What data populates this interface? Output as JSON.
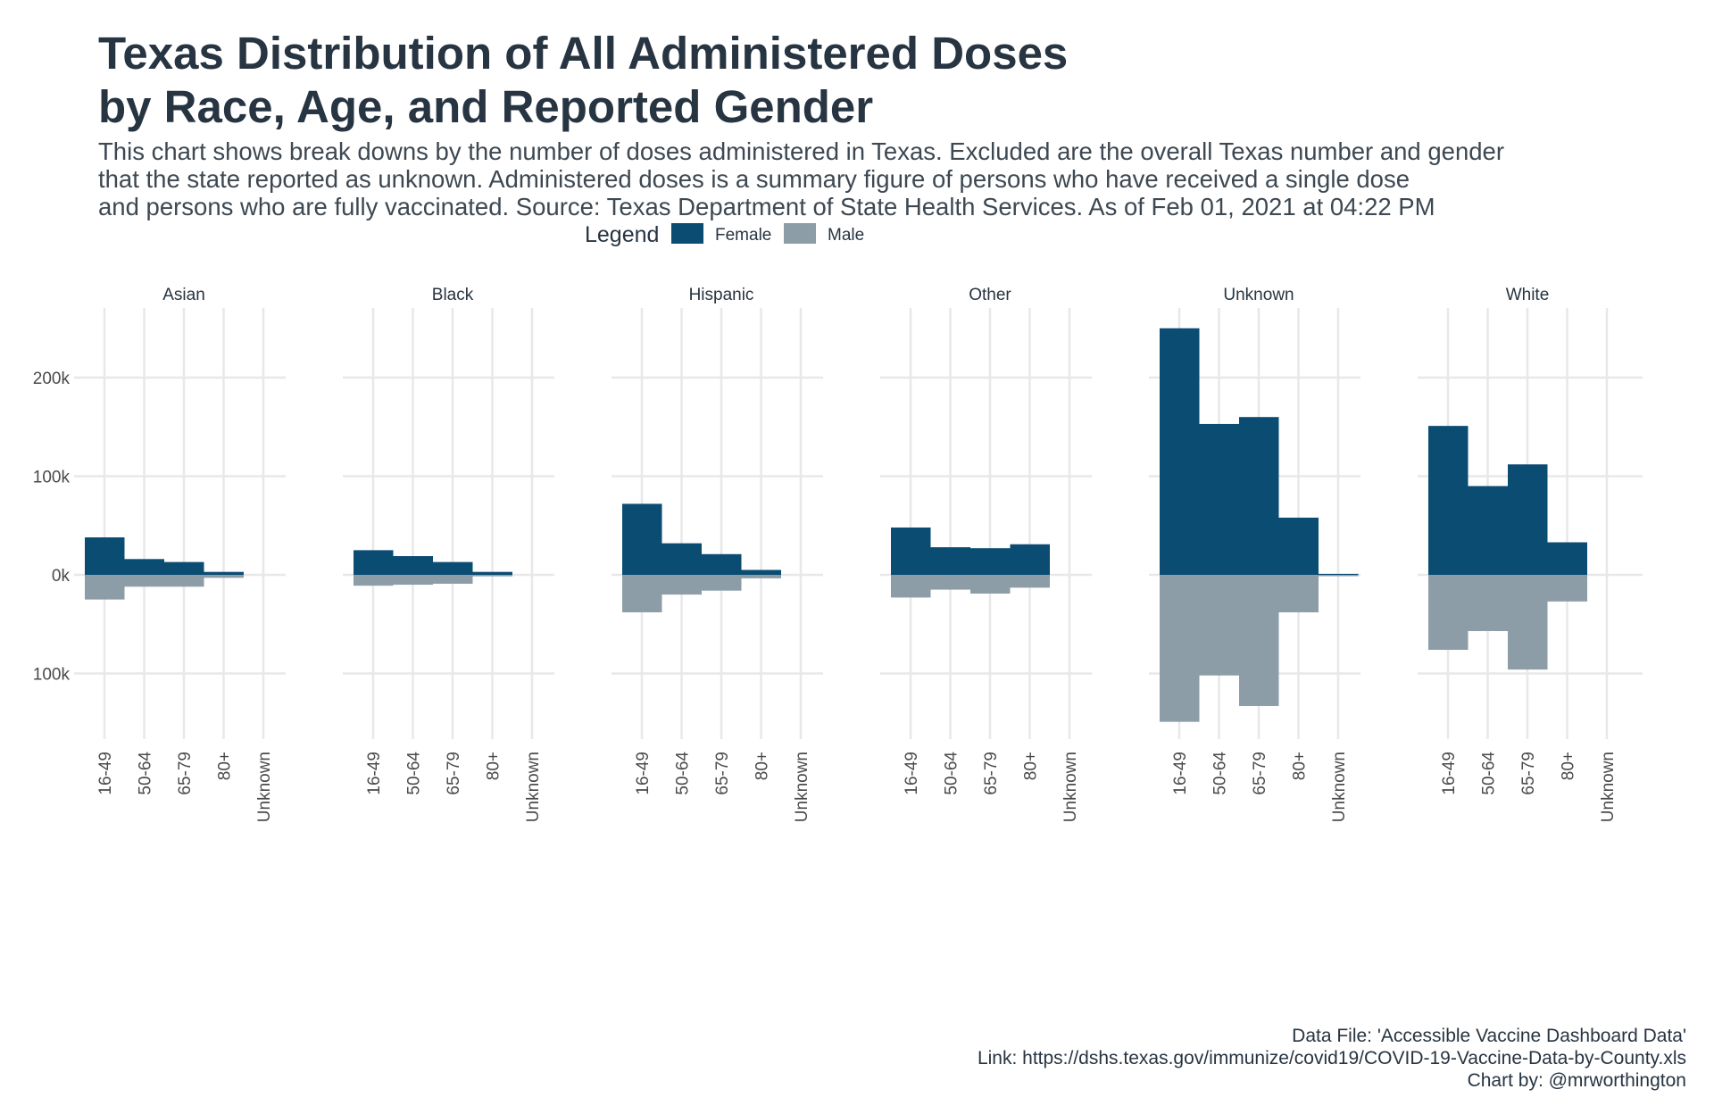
{
  "title_lines": [
    "Texas Distribution of All Administered Doses",
    "by Race, Age, and Reported Gender"
  ],
  "subtitle_lines": [
    "This chart shows break downs by the number of doses administered in Texas. Excluded are the overall Texas number and gender",
    "that the state reported as unknown. Administered doses is a summary figure of persons who have received a single dose",
    "and persons who are fully vaccinated. Source: Texas Department of State Health Services. As of Feb 01, 2021 at 04:22 PM"
  ],
  "caption_lines": [
    "Data File: 'Accessible Vaccine Dashboard Data'",
    "Link: https://dshs.texas.gov/immunize/covid19/COVID-19-Vaccine-Data-by-County.xls",
    "Chart by: @mrworthington"
  ],
  "colors": {
    "female": "#0b4c73",
    "male": "#8c9da8",
    "grid": "#e8e8e8",
    "text": "#273441"
  },
  "chart_data": {
    "type": "bar",
    "layout": "faceted diverging bars",
    "legend": {
      "title": "Legend",
      "position": "top-center",
      "entries": [
        "Female",
        "Male"
      ]
    },
    "categories": [
      "16-49",
      "50-64",
      "65-79",
      "80+",
      "Unknown"
    ],
    "ylim": [
      -170000,
      250000
    ],
    "y_ticks": [
      {
        "value": 200000,
        "label": "200k"
      },
      {
        "value": 100000,
        "label": "100k"
      },
      {
        "value": 0,
        "label": "0k"
      },
      {
        "value": -100000,
        "label": "100k"
      }
    ],
    "grid": true,
    "facets": [
      {
        "name": "Asian",
        "series": [
          {
            "name": "Female",
            "values": [
              38000,
              16000,
              13000,
              3000,
              0
            ]
          },
          {
            "name": "Male",
            "values": [
              -25000,
              -12000,
              -12000,
              -3000,
              0
            ]
          }
        ]
      },
      {
        "name": "Black",
        "series": [
          {
            "name": "Female",
            "values": [
              25000,
              19000,
              13000,
              3000,
              0
            ]
          },
          {
            "name": "Male",
            "values": [
              -11000,
              -10000,
              -9000,
              -1500,
              0
            ]
          }
        ]
      },
      {
        "name": "Hispanic",
        "series": [
          {
            "name": "Female",
            "values": [
              72000,
              32000,
              21000,
              5000,
              0
            ]
          },
          {
            "name": "Male",
            "values": [
              -38000,
              -20000,
              -16000,
              -3500,
              0
            ]
          }
        ]
      },
      {
        "name": "Other",
        "series": [
          {
            "name": "Female",
            "values": [
              48000,
              28000,
              27000,
              31000,
              0
            ]
          },
          {
            "name": "Male",
            "values": [
              -23000,
              -15000,
              -19000,
              -13000,
              0
            ]
          }
        ]
      },
      {
        "name": "Unknown",
        "series": [
          {
            "name": "Female",
            "values": [
              250000,
              153000,
              160000,
              58000,
              1000
            ]
          },
          {
            "name": "Male",
            "values": [
              -149000,
              -102000,
              -133000,
              -38000,
              -500
            ]
          }
        ]
      },
      {
        "name": "White",
        "series": [
          {
            "name": "Female",
            "values": [
              151000,
              90000,
              112000,
              33000,
              0
            ]
          },
          {
            "name": "Male",
            "values": [
              -76000,
              -57000,
              -96000,
              -27000,
              0
            ]
          }
        ]
      }
    ]
  }
}
